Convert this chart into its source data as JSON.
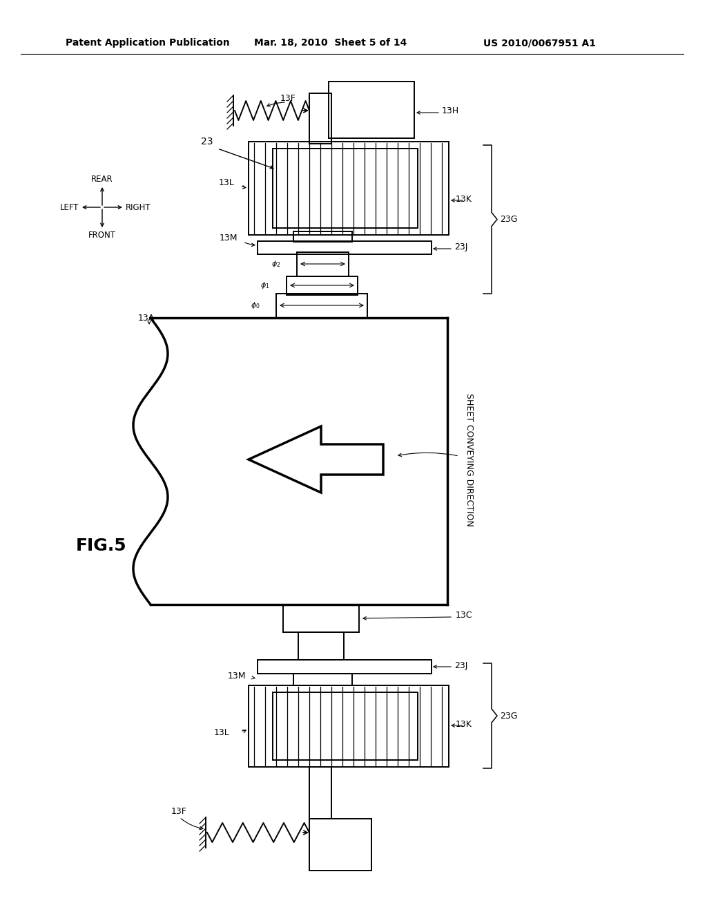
{
  "bg_color": "#ffffff",
  "header_left": "Patent Application Publication",
  "header_mid": "Mar. 18, 2010  Sheet 5 of 14",
  "header_right": "US 2010/0067951 A1",
  "fig_label": "FIG.5",
  "direction_label": "SHEET CONVEYING DIRECTION"
}
